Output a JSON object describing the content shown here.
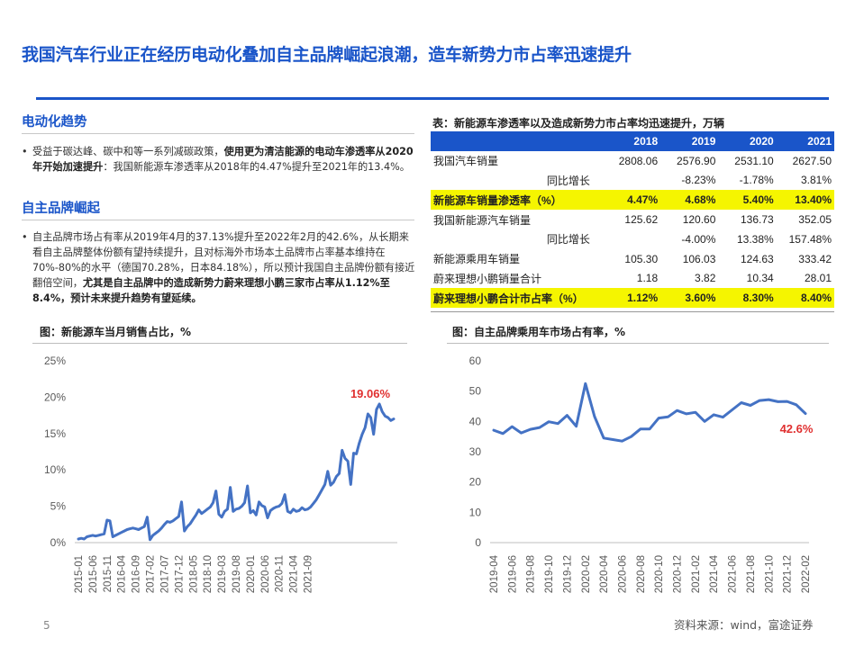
{
  "title": "我国汽车行业正在经历电动化叠加自主品牌崛起浪潮，造车新势力市占率迅速提升",
  "section1": {
    "heading": "电动化趋势",
    "bullet_pre": "受益于碳达峰、碳中和等一系列减碳政策，",
    "bullet_bold": "使用更为清洁能源的电动车渗透率从2020年开始加速提升",
    "bullet_post": "：我国新能源车渗透率从2018年的4.47%提升至2021年的13.4%。"
  },
  "section2": {
    "heading": "自主品牌崛起",
    "bullet_pre": "自主品牌市场占有率从2019年4月的37.13%提升至2022年2月的42.6%，从长期来看自主品牌整体份额有望持续提升，且对标海外市场本土品牌市占率基本维持在70%-80%的水平（德国70.28%，日本84.18%），所以预计我国自主品牌份额有接近翻倍空间，",
    "bullet_bold": "尤其是自主品牌中的造成新势力蔚来理想小鹏三家市占率从1.12%至8.4%，预计未来提升趋势有望延续。"
  },
  "table": {
    "caption": "表：新能源车渗透率以及造成新势力市占率均迅速提升，万辆",
    "headers": [
      "",
      "2018",
      "2019",
      "2020",
      "2021"
    ],
    "rows": [
      {
        "label": "我国汽车销量",
        "values": [
          "2808.06",
          "2576.90",
          "2531.10",
          "2627.50"
        ],
        "highlight": false,
        "sub": false
      },
      {
        "label": "同比增长",
        "values": [
          "",
          "-8.23%",
          "-1.78%",
          "3.81%"
        ],
        "highlight": false,
        "sub": true
      },
      {
        "label": "新能源车销量渗透率（%）",
        "values": [
          "4.47%",
          "4.68%",
          "5.40%",
          "13.40%"
        ],
        "highlight": true,
        "sub": false
      },
      {
        "label": "我国新能源汽车销量",
        "values": [
          "125.62",
          "120.60",
          "136.73",
          "352.05"
        ],
        "highlight": false,
        "sub": false
      },
      {
        "label": "同比增长",
        "values": [
          "",
          "-4.00%",
          "13.38%",
          "157.48%"
        ],
        "highlight": false,
        "sub": true
      },
      {
        "label": "新能源乘用车销量",
        "values": [
          "105.30",
          "106.03",
          "124.63",
          "333.42"
        ],
        "highlight": false,
        "sub": false
      },
      {
        "label": "蔚来理想小鹏销量合计",
        "values": [
          "1.18",
          "3.82",
          "10.34",
          "28.01"
        ],
        "highlight": false,
        "sub": false
      },
      {
        "label": "蔚来理想小鹏合计市占率（%）",
        "values": [
          "1.12%",
          "3.60%",
          "8.30%",
          "8.40%"
        ],
        "highlight": true,
        "sub": false
      }
    ]
  },
  "chart_data": [
    {
      "type": "line",
      "title": "图：新能源车当月销售占比，%",
      "color": "#4472c4",
      "annotation": "19.06%",
      "annotation_color": "#e03030",
      "y_ticks": [
        "0%",
        "5%",
        "10%",
        "15%",
        "20%",
        "25%"
      ],
      "ylim": [
        0,
        25
      ],
      "x_ticks": [
        "2015-01",
        "2015-06",
        "2015-11",
        "2016-04",
        "2016-09",
        "2017-02",
        "2017-07",
        "2017-12",
        "2018-05",
        "2018-10",
        "2019-03",
        "2019-08",
        "2020-01",
        "2020-06",
        "2020-11",
        "2021-04",
        "2021-09"
      ],
      "x_start": "2015-01",
      "values": [
        0.5,
        0.6,
        0.5,
        0.8,
        0.9,
        1.0,
        0.9,
        1.0,
        1.1,
        1.2,
        3.1,
        3.0,
        0.8,
        1.0,
        1.2,
        1.4,
        1.6,
        1.8,
        1.9,
        2.0,
        1.9,
        1.8,
        2.0,
        2.2,
        3.5,
        0.4,
        1.0,
        1.3,
        1.6,
        2.0,
        2.5,
        2.9,
        2.8,
        3.0,
        3.3,
        3.6,
        5.6,
        1.6,
        2.2,
        2.6,
        3.2,
        3.8,
        4.5,
        4.0,
        4.3,
        4.6,
        4.9,
        5.5,
        7.1,
        3.9,
        3.5,
        4.3,
        4.6,
        7.6,
        4.3,
        4.6,
        4.7,
        5.0,
        5.5,
        7.8,
        4.1,
        4.4,
        3.8,
        5.6,
        5.1,
        4.9,
        3.4,
        4.4,
        4.7,
        4.9,
        5.0,
        5.4,
        6.6,
        4.3,
        4.1,
        4.6,
        4.3,
        4.4,
        4.8,
        4.5,
        4.6,
        4.9,
        5.4,
        5.9,
        6.6,
        7.3,
        8.0,
        9.8,
        7.9,
        8.3,
        9.1,
        9.5,
        12.7,
        11.6,
        11.2,
        8.0,
        12.3,
        12.2,
        13.7,
        14.9,
        15.8,
        17.7,
        17.2,
        14.9,
        18.3,
        19.06,
        18.0,
        17.4,
        17.2,
        16.8,
        17.0
      ]
    },
    {
      "type": "line",
      "title": "图：自主品牌乘用车市场占有率，%",
      "color": "#4472c4",
      "annotation": "42.6%",
      "annotation_color": "#e03030",
      "y_ticks": [
        "0",
        "10",
        "20",
        "30",
        "40",
        "50",
        "60"
      ],
      "ylim": [
        0,
        60
      ],
      "x_ticks": [
        "2019-04",
        "2019-06",
        "2019-08",
        "2019-10",
        "2019-12",
        "2020-02",
        "2020-04",
        "2020-06",
        "2020-08",
        "2020-10",
        "2020-12",
        "2021-02",
        "2021-04",
        "2021-06",
        "2021-08",
        "2021-10",
        "2021-12",
        "2022-02"
      ],
      "x_start": "2019-04",
      "values": [
        37.1,
        36.0,
        38.3,
        36.2,
        37.4,
        38.0,
        39.9,
        39.3,
        42.0,
        38.4,
        52.5,
        41.6,
        34.5,
        34.0,
        33.5,
        35.0,
        37.5,
        37.5,
        41.1,
        41.5,
        43.6,
        42.5,
        43.0,
        40.0,
        42.2,
        41.4,
        43.8,
        46.2,
        45.3,
        46.9,
        47.2,
        46.5,
        46.6,
        45.5,
        42.6
      ]
    }
  ],
  "footer": {
    "page": "5",
    "source": "资料来源：wind，富途证券"
  }
}
